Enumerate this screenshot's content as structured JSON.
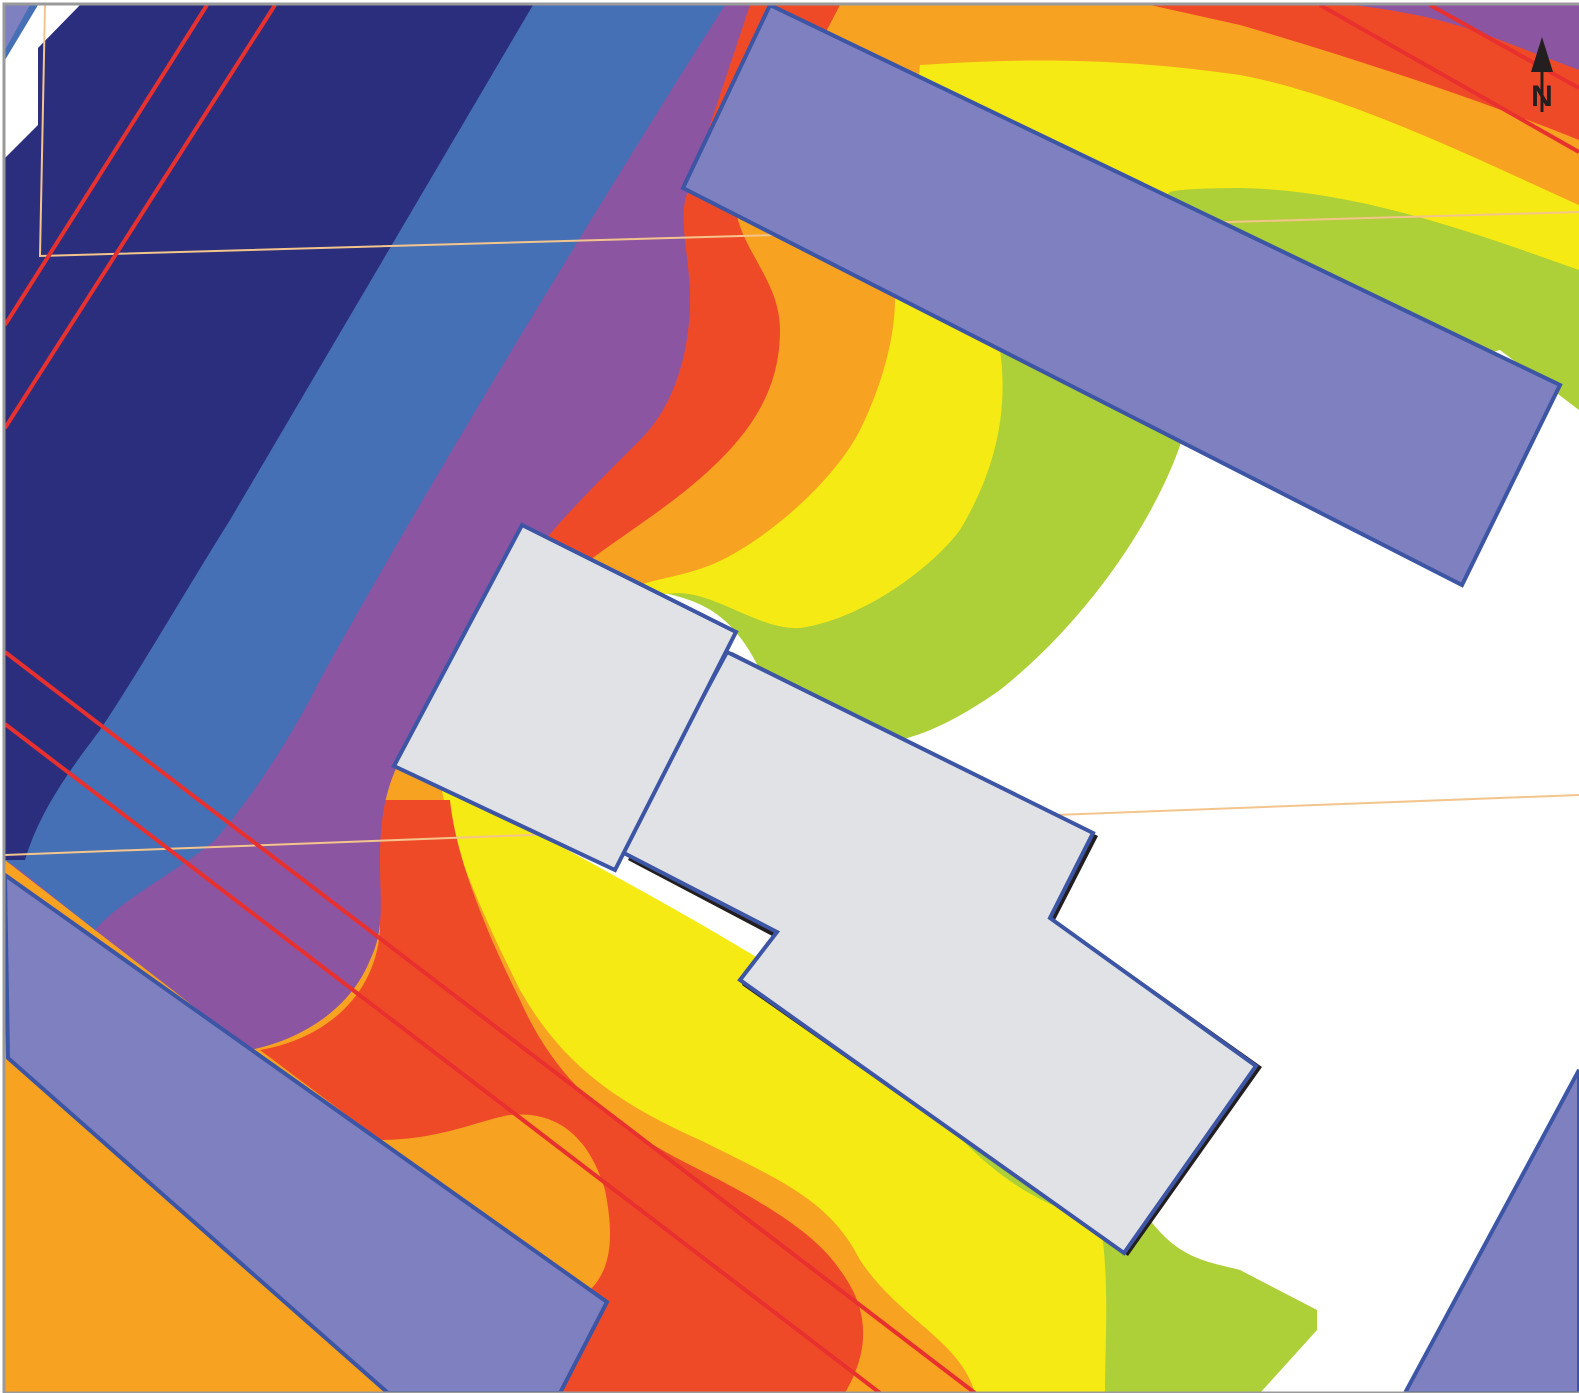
{
  "map": {
    "type": "noise contour site plan",
    "background": "#ffffff",
    "frame_color": "#9a9a9a",
    "north_arrow": {
      "label": "N",
      "icon": "north-arrow-icon",
      "color": "#231f20"
    },
    "contour_bands": [
      {
        "name": "band-1",
        "color": "#adcf37"
      },
      {
        "name": "band-2",
        "color": "#f5ea14"
      },
      {
        "name": "band-3",
        "color": "#f8a221"
      },
      {
        "name": "band-4",
        "color": "#ef4a28"
      },
      {
        "name": "band-5",
        "color": "#8b55a2"
      },
      {
        "name": "band-6",
        "color": "#4570b6"
      },
      {
        "name": "band-7",
        "color": "#2b2e7c"
      }
    ],
    "roads": {
      "fill": "#7f80bf",
      "stroke": "#3d55a5"
    },
    "building": {
      "fill": "#e1e2e5",
      "stroke": "#3d55a5"
    },
    "lines": {
      "red": "#e8302f",
      "boundary": "#f3c58c"
    }
  }
}
